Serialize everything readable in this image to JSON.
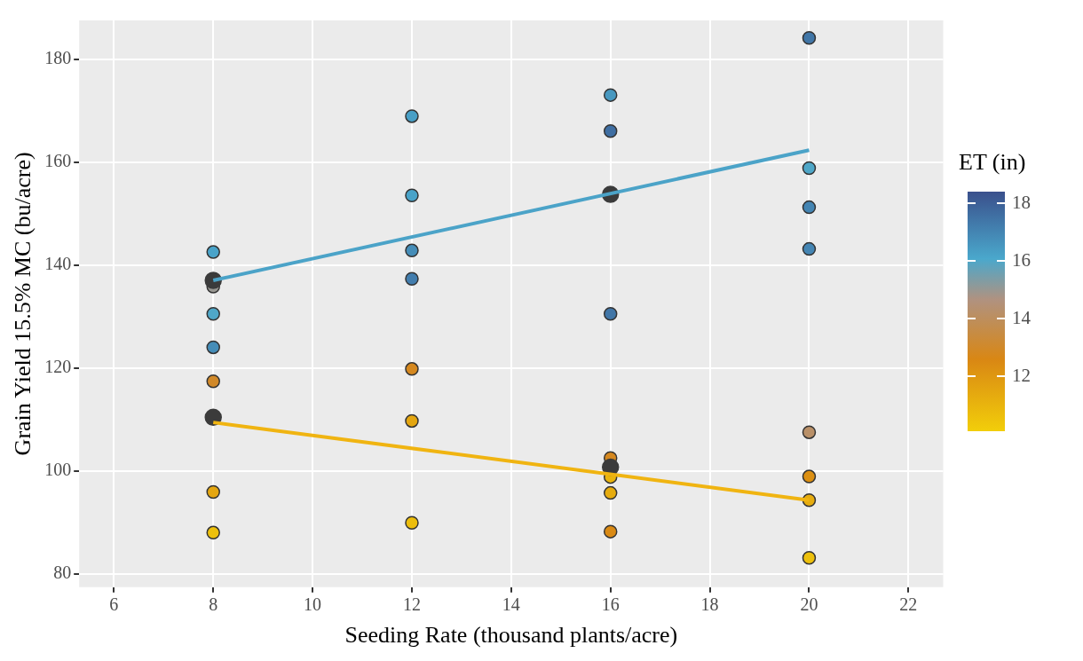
{
  "chart_data": {
    "type": "scatter",
    "xlabel": "Seeding Rate (thousand plants/acre)",
    "ylabel": "Grain Yield 15.5% MC (bu/acre)",
    "clabel": "ET (in)",
    "clim": [
      10.1,
      18.4
    ],
    "cticks": [
      12,
      14,
      16,
      18
    ],
    "xlim": [
      5.3,
      22.7
    ],
    "xticks": [
      6,
      8,
      10,
      12,
      14,
      16,
      18,
      20,
      22
    ],
    "ylim": [
      77.4,
      187.5
    ],
    "yticks": [
      80,
      100,
      120,
      140,
      160,
      180
    ],
    "grid": true,
    "legend": false,
    "marker": "circle",
    "series": [
      {
        "x": [
          8,
          8,
          8,
          8,
          8,
          8,
          8,
          12,
          12,
          12,
          12,
          12,
          12,
          12,
          16,
          16,
          16,
          16,
          16,
          16,
          16,
          20,
          20,
          20,
          20,
          20,
          20,
          20,
          20
        ],
        "values": [
          142.5,
          135.8,
          130.5,
          124.0,
          117.4,
          95.9,
          88.0,
          168.9,
          153.5,
          142.8,
          137.3,
          119.8,
          109.7,
          89.9,
          173.0,
          166.0,
          130.5,
          102.5,
          98.8,
          95.7,
          88.2,
          184.1,
          158.8,
          151.2,
          143.1,
          107.5,
          98.9,
          94.3,
          83.1
        ],
        "colors": [
          "#49a3c9",
          "#989792",
          "#4fa7c8",
          "#458db8",
          "#d18929",
          "#e4a610",
          "#edc00c",
          "#489fc6",
          "#49a3c9",
          "#458db8",
          "#427dad",
          "#d5881f",
          "#e4a610",
          "#ecbd0c",
          "#4798c0",
          "#3f6ea2",
          "#4176a7",
          "#d5881f",
          "#e9b40e",
          "#e6ac0f",
          "#da8a14",
          "#4176a7",
          "#4fa7c8",
          "#4485b3",
          "#4485b3",
          "#b99068",
          "#dc9013",
          "#e6ac0f",
          "#edc00c"
        ]
      },
      {
        "type": "line",
        "color": "#4ba3c8",
        "x": [
          8,
          20
        ],
        "values": [
          137.0,
          162.3
        ],
        "marker": "none"
      },
      {
        "type": "line",
        "color": "#f0b411",
        "x": [
          8,
          20
        ],
        "values": [
          109.4,
          94.3
        ],
        "marker": "none"
      },
      {
        "color": "#3b3b3b",
        "x": [
          8,
          8,
          16,
          16
        ],
        "values": [
          137.0,
          110.4,
          153.7,
          100.7
        ]
      }
    ]
  }
}
